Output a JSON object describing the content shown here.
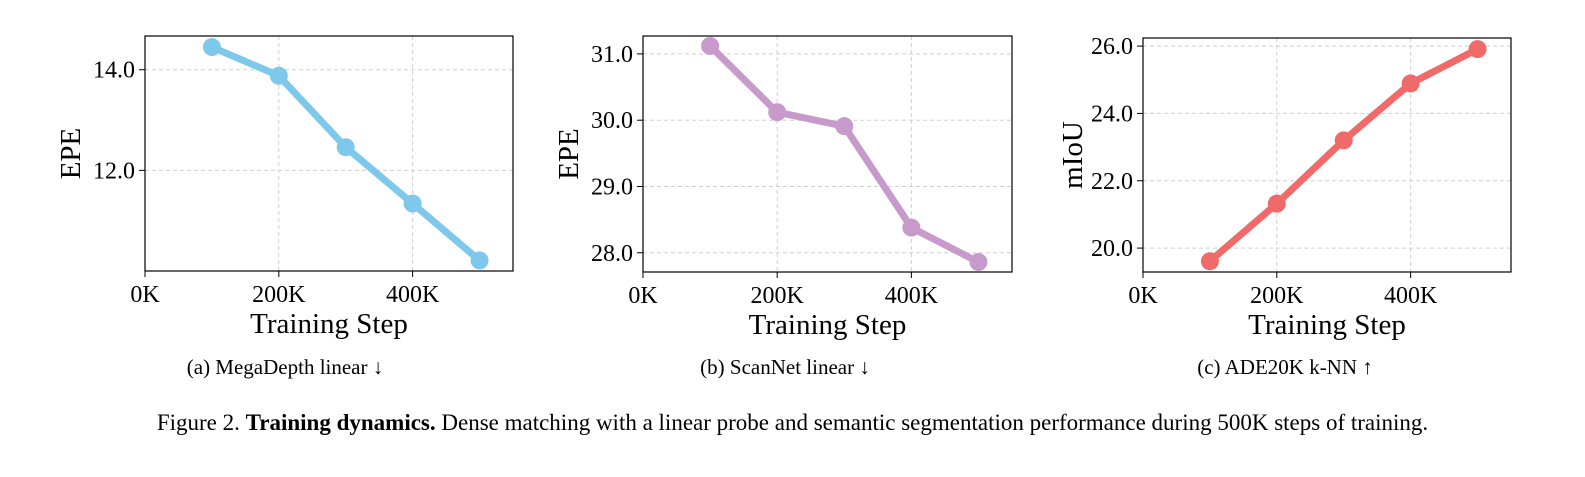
{
  "chart_data": [
    {
      "type": "line",
      "caption": "(a) MegaDepth linear ↓",
      "xlabel": "Training Step",
      "ylabel": "EPE",
      "x": [
        100000,
        200000,
        300000,
        400000,
        500000
      ],
      "series": [
        {
          "color": "#7ec8ec",
          "values": [
            14.45,
            13.88,
            12.46,
            11.34,
            10.21
          ]
        }
      ],
      "xlim": [
        0,
        550000
      ],
      "ylim": [
        10.0,
        14.67
      ],
      "xticks": [
        {
          "value": 0,
          "label": "0K"
        },
        {
          "value": 200000,
          "label": "200K"
        },
        {
          "value": 400000,
          "label": "400K"
        }
      ],
      "yticks": [
        {
          "value": 12,
          "label": "12.0"
        },
        {
          "value": 14,
          "label": "14.0"
        }
      ],
      "grid": true
    },
    {
      "type": "line",
      "caption": "(b) ScanNet linear ↓",
      "xlabel": "Training Step",
      "ylabel": "EPE",
      "x": [
        100000,
        200000,
        300000,
        400000,
        500000
      ],
      "series": [
        {
          "color": "#c89acb",
          "values": [
            31.12,
            30.12,
            29.91,
            28.38,
            27.86
          ]
        }
      ],
      "xlim": [
        0,
        550000
      ],
      "ylim": [
        27.71,
        31.27
      ],
      "xticks": [
        {
          "value": 0,
          "label": "0K"
        },
        {
          "value": 200000,
          "label": "200K"
        },
        {
          "value": 400000,
          "label": "400K"
        }
      ],
      "yticks": [
        {
          "value": 28,
          "label": "28.0"
        },
        {
          "value": 29,
          "label": "29.0"
        },
        {
          "value": 30,
          "label": "30.0"
        },
        {
          "value": 31,
          "label": "31.0"
        }
      ],
      "grid": true
    },
    {
      "type": "line",
      "caption": "(c) ADE20K k-NN ↑",
      "xlabel": "Training Step",
      "ylabel": "mIoU",
      "x": [
        100000,
        200000,
        300000,
        400000,
        500000
      ],
      "series": [
        {
          "color": "#f06a6a",
          "values": [
            19.61,
            21.32,
            23.2,
            24.89,
            25.91
          ]
        }
      ],
      "xlim": [
        0,
        550000
      ],
      "ylim": [
        19.29,
        26.24
      ],
      "xticks": [
        {
          "value": 0,
          "label": "0K"
        },
        {
          "value": 200000,
          "label": "200K"
        },
        {
          "value": 400000,
          "label": "400K"
        }
      ],
      "yticks": [
        {
          "value": 20,
          "label": "20.0"
        },
        {
          "value": 22,
          "label": "22.0"
        },
        {
          "value": 24,
          "label": "24.0"
        },
        {
          "value": 26,
          "label": "26.0"
        }
      ],
      "grid": true
    }
  ],
  "figure_caption": {
    "label": "Figure 2.",
    "title": "Training dynamics.",
    "text": "Dense matching with a linear probe and semantic segmentation performance during 500K steps of training."
  }
}
